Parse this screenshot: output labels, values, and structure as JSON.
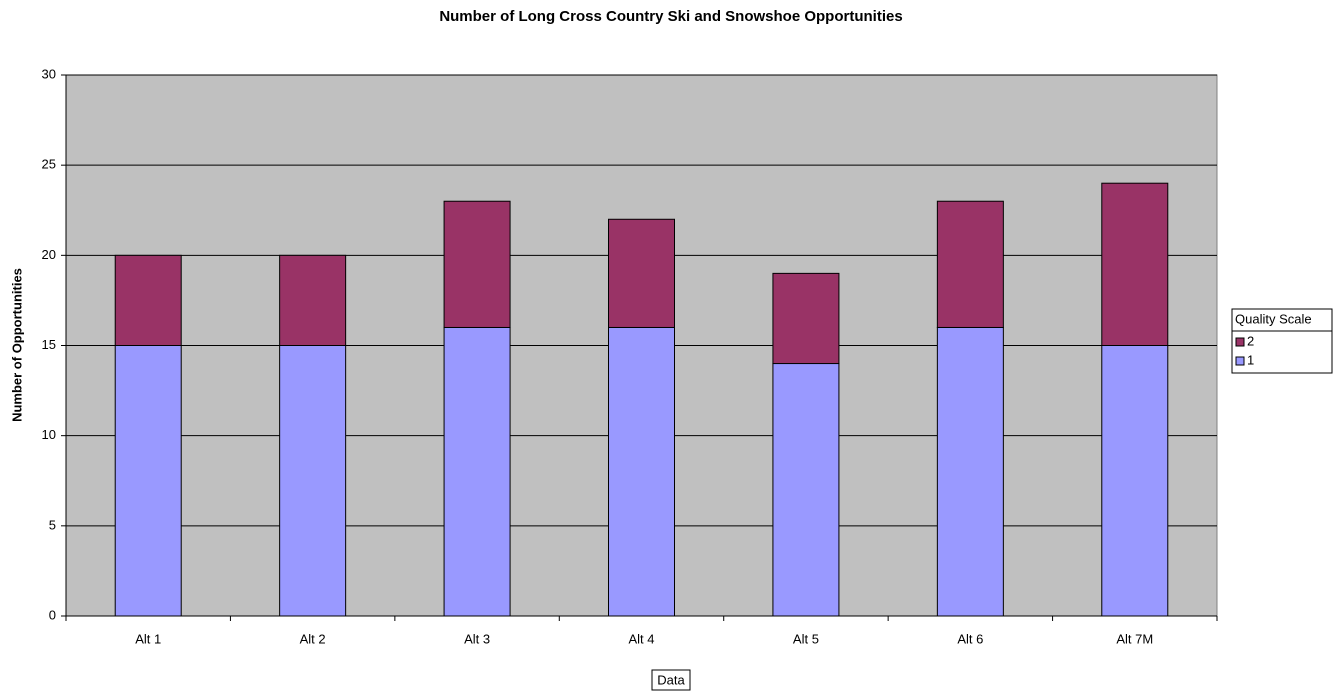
{
  "chart_data": {
    "type": "stacked_bar",
    "title": "Number of Long Cross Country Ski and Snowshoe Opportunities",
    "x_label": "Data",
    "y_label": "Number of Opportunities",
    "categories": [
      "Alt 1",
      "Alt 2",
      "Alt 3",
      "Alt 4",
      "Alt 5",
      "Alt 6",
      "Alt 7M"
    ],
    "series": [
      {
        "name": "1",
        "color": "#9999ff",
        "values": [
          15,
          15,
          16,
          16,
          14,
          16,
          15
        ]
      },
      {
        "name": "2",
        "color": "#993366",
        "values": [
          5,
          5,
          7,
          6,
          5,
          7,
          9
        ]
      }
    ],
    "ylim": [
      0,
      30
    ],
    "yticks": [
      0,
      5,
      10,
      15,
      20,
      25,
      30
    ],
    "grid": true,
    "legend_title": "Quality Scale",
    "legend_position": "right",
    "plot_background": "#c0c0c0"
  }
}
